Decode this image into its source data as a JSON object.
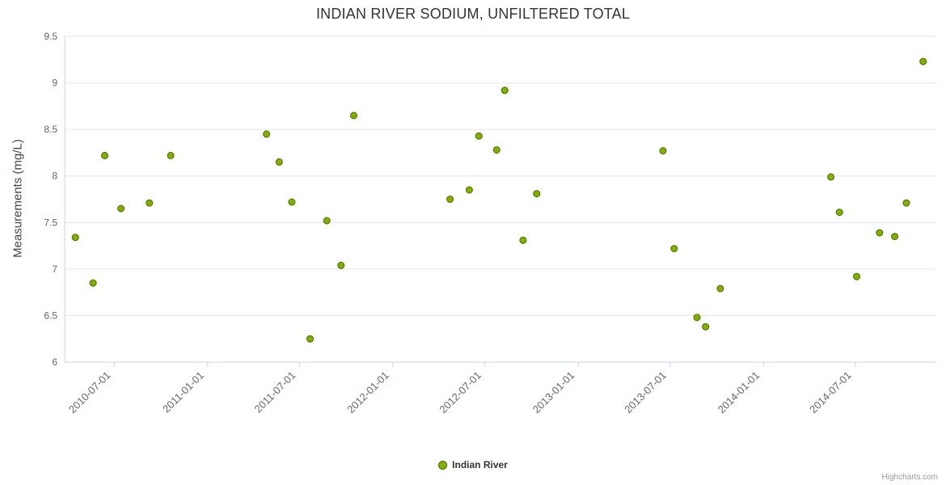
{
  "chart_data": {
    "type": "scatter",
    "title": "INDIAN RIVER SODIUM, UNFILTERED TOTAL",
    "xlabel": "",
    "ylabel": "Measurements (mg/L)",
    "ylim": [
      6,
      9.5
    ],
    "ytick_interval": 0.5,
    "xlim": [
      "2010-03-25",
      "2014-12-08"
    ],
    "xticks": [
      "2010-07-01",
      "2011-01-01",
      "2011-07-01",
      "2012-01-01",
      "2012-07-01",
      "2013-01-01",
      "2013-07-01",
      "2014-01-01",
      "2014-07-01"
    ],
    "grid": "horizontal",
    "legend_position": "bottom-center",
    "series": [
      {
        "name": "Indian River",
        "marker_color": "#80b000",
        "marker_line_color": "#4c6a00",
        "points": [
          [
            "2010-04-15",
            7.34
          ],
          [
            "2010-05-20",
            6.85
          ],
          [
            "2010-06-12",
            8.22
          ],
          [
            "2010-07-14",
            7.65
          ],
          [
            "2010-09-08",
            7.71
          ],
          [
            "2010-10-20",
            8.22
          ],
          [
            "2011-04-27",
            8.45
          ],
          [
            "2011-05-22",
            8.15
          ],
          [
            "2011-06-16",
            7.72
          ],
          [
            "2011-07-22",
            6.25
          ],
          [
            "2011-08-24",
            7.52
          ],
          [
            "2011-09-21",
            7.04
          ],
          [
            "2011-10-16",
            8.65
          ],
          [
            "2012-04-23",
            7.75
          ],
          [
            "2012-05-31",
            7.85
          ],
          [
            "2012-06-19",
            8.43
          ],
          [
            "2012-07-24",
            8.28
          ],
          [
            "2012-08-09",
            8.92
          ],
          [
            "2012-09-14",
            7.31
          ],
          [
            "2012-10-11",
            7.81
          ],
          [
            "2013-06-17",
            8.27
          ],
          [
            "2013-07-09",
            7.22
          ],
          [
            "2013-08-23",
            6.48
          ],
          [
            "2013-09-09",
            6.38
          ],
          [
            "2013-10-08",
            6.79
          ],
          [
            "2014-05-14",
            7.99
          ],
          [
            "2014-05-31",
            7.61
          ],
          [
            "2014-07-04",
            6.92
          ],
          [
            "2014-08-18",
            7.39
          ],
          [
            "2014-09-17",
            7.35
          ],
          [
            "2014-10-10",
            7.71
          ],
          [
            "2014-11-12",
            9.23
          ]
        ]
      }
    ]
  },
  "colors": {
    "grid_line": "#e6e6e6",
    "axis_line": "#ccd6eb",
    "tick_label": "#666666",
    "title_text": "#333333"
  },
  "credits": "Highcharts.com"
}
